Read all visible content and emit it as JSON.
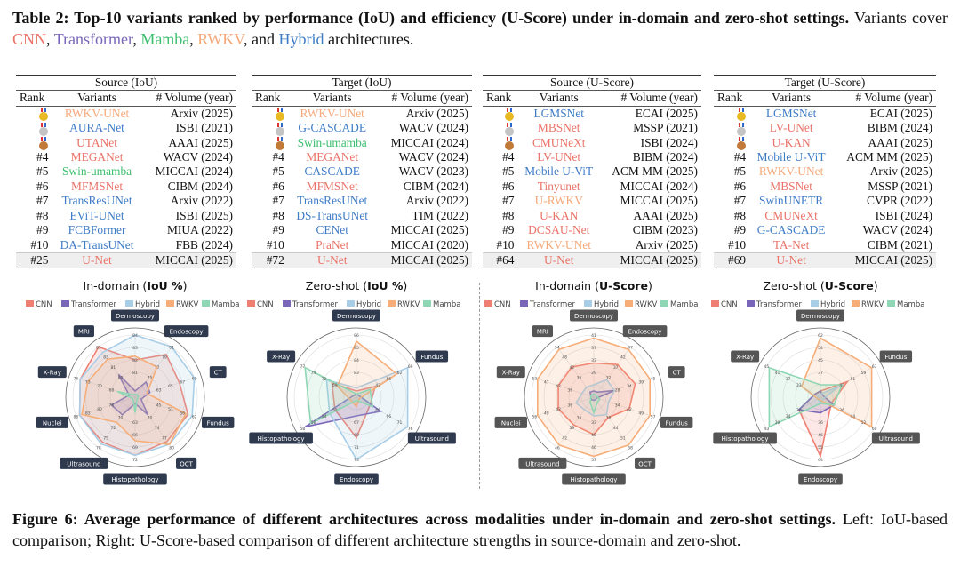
{
  "table_caption": {
    "bold": "Table 2: Top-10 variants ranked by performance (IoU) and efficiency (U-Score) under in-domain and zero-shot settings.",
    "text_1": " Variants cover ",
    "cnn": "CNN",
    "sep1": ", ",
    "transformer": "Transformer",
    "sep2": ", ",
    "mamba": "Mamba",
    "sep3": ", ",
    "rwkv": "RWKV",
    "sep4": ", and ",
    "hybrid": "Hybrid",
    "text_2": " architectures."
  },
  "arch_colors": {
    "CNN": "#ea7469",
    "Transformer": "#3f7cc6",
    "Hybrid": "#3f7cc6",
    "Mamba": "#3cbf6e",
    "RWKV": "#f6a97a"
  },
  "tables": [
    {
      "title": "Source (IoU)",
      "headers": [
        "Rank",
        "Variants",
        "# Volume (year)"
      ],
      "rows": [
        {
          "rank": "",
          "medal": "gold",
          "variant": "RWKV-UNet",
          "arch": "RWKV",
          "volume": "Arxiv (2025)"
        },
        {
          "rank": "",
          "medal": "silver",
          "variant": "AURA-Net",
          "arch": "Transformer",
          "volume": "ISBI (2021)"
        },
        {
          "rank": "",
          "medal": "bronze",
          "variant": "UTANet",
          "arch": "CNN",
          "volume": "AAAI (2025)"
        },
        {
          "rank": "#4",
          "variant": "MEGANet",
          "arch": "CNN",
          "volume": "WACV (2024)"
        },
        {
          "rank": "#5",
          "variant": "Swin-umamba",
          "arch": "Mamba",
          "volume": "MICCAI (2024)"
        },
        {
          "rank": "#6",
          "variant": "MFMSNet",
          "arch": "CNN",
          "volume": "CIBM (2024)"
        },
        {
          "rank": "#7",
          "variant": "TransResUNet",
          "arch": "Transformer",
          "volume": "Arxiv (2022)"
        },
        {
          "rank": "#8",
          "variant": "EViT-UNet",
          "arch": "Transformer",
          "volume": "ISBI (2025)"
        },
        {
          "rank": "#9",
          "variant": "FCBFormer",
          "arch": "Transformer",
          "volume": "MIUA (2022)"
        },
        {
          "rank": "#10",
          "variant": "DA-TransUNet",
          "arch": "Transformer",
          "volume": "FBB (2024)"
        },
        {
          "rank": "#25",
          "variant": "U-Net",
          "arch": "CNN",
          "volume": "MICCAI (2025)"
        }
      ]
    },
    {
      "title": "Target (IoU)",
      "headers": [
        "Rank",
        "Variants",
        "# Volume (year)"
      ],
      "rows": [
        {
          "rank": "",
          "medal": "gold",
          "variant": "RWKV-UNet",
          "arch": "RWKV",
          "volume": "Arxiv (2025)"
        },
        {
          "rank": "",
          "medal": "silver",
          "variant": "G-CASCADE",
          "arch": "Transformer",
          "volume": "WACV (2024)"
        },
        {
          "rank": "",
          "medal": "bronze",
          "variant": "Swin-umamba",
          "arch": "Mamba",
          "volume": "MICCAI (2024)"
        },
        {
          "rank": "#4",
          "variant": "MEGANet",
          "arch": "CNN",
          "volume": "WACV (2024)"
        },
        {
          "rank": "#5",
          "variant": "CASCADE",
          "arch": "Transformer",
          "volume": "WACV (2023)"
        },
        {
          "rank": "#6",
          "variant": "MFMSNet",
          "arch": "CNN",
          "volume": "CIBM (2024)"
        },
        {
          "rank": "#7",
          "variant": "TransResUNet",
          "arch": "Transformer",
          "volume": "Arxiv (2022)"
        },
        {
          "rank": "#8",
          "variant": "DS-TransUNet",
          "arch": "Transformer",
          "volume": "TIM (2022)"
        },
        {
          "rank": "#9",
          "variant": "CENet",
          "arch": "Transformer",
          "volume": "MICCAI (2025)"
        },
        {
          "rank": "#10",
          "variant": "PraNet",
          "arch": "CNN",
          "volume": "MICCAI (2020)"
        },
        {
          "rank": "#72",
          "variant": "U-Net",
          "arch": "CNN",
          "volume": "MICCAI (2025)"
        }
      ]
    },
    {
      "title": "Source (U-Score)",
      "headers": [
        "Rank",
        "Variants",
        "# Volume (year)"
      ],
      "rows": [
        {
          "rank": "",
          "medal": "gold",
          "variant": "LGMSNet",
          "arch": "Transformer",
          "volume": "ECAI (2025)"
        },
        {
          "rank": "",
          "medal": "silver",
          "variant": "MBSNet",
          "arch": "CNN",
          "volume": "MSSP (2021)"
        },
        {
          "rank": "",
          "medal": "bronze",
          "variant": "CMUNeXt",
          "arch": "CNN",
          "volume": "ISBI (2024)"
        },
        {
          "rank": "#4",
          "variant": "LV-UNet",
          "arch": "CNN",
          "volume": "BIBM (2024)"
        },
        {
          "rank": "#5",
          "variant": "Mobile U-ViT",
          "arch": "Transformer",
          "volume": "ACM MM (2025)"
        },
        {
          "rank": "#6",
          "variant": "Tinyunet",
          "arch": "CNN",
          "volume": "MICCAI (2024)"
        },
        {
          "rank": "#7",
          "variant": "U-RWKV",
          "arch": "RWKV",
          "volume": "MICCAI (2025)"
        },
        {
          "rank": "#8",
          "variant": "U-KAN",
          "arch": "CNN",
          "volume": "AAAI (2025)"
        },
        {
          "rank": "#9",
          "variant": "DCSAU-Net",
          "arch": "CNN",
          "volume": "CIBM (2023)"
        },
        {
          "rank": "#10",
          "variant": "RWKV-UNet",
          "arch": "RWKV",
          "volume": "Arxiv (2025)"
        },
        {
          "rank": "#64",
          "variant": "U-Net",
          "arch": "CNN",
          "volume": "MICCAI (2025)"
        }
      ]
    },
    {
      "title": "Target (U-Score)",
      "headers": [
        "Rank",
        "Variants",
        "# Volume (year)"
      ],
      "rows": [
        {
          "rank": "",
          "medal": "gold",
          "variant": "LGMSNet",
          "arch": "Transformer",
          "volume": "ECAI (2025)"
        },
        {
          "rank": "",
          "medal": "silver",
          "variant": "LV-UNet",
          "arch": "CNN",
          "volume": "BIBM (2024)"
        },
        {
          "rank": "",
          "medal": "bronze",
          "variant": "U-KAN",
          "arch": "CNN",
          "volume": "AAAI (2025)"
        },
        {
          "rank": "#4",
          "variant": "Mobile U-ViT",
          "arch": "Transformer",
          "volume": "ACM MM (2025)"
        },
        {
          "rank": "#5",
          "variant": "RWKV-UNet",
          "arch": "RWKV",
          "volume": "Arxiv (2025)"
        },
        {
          "rank": "#6",
          "variant": "MBSNet",
          "arch": "CNN",
          "volume": "MSSP (2021)"
        },
        {
          "rank": "#7",
          "variant": "SwinUNETR",
          "arch": "Transformer",
          "volume": "CVPR (2022)"
        },
        {
          "rank": "#8",
          "variant": "CMUNeXt",
          "arch": "CNN",
          "volume": "ISBI (2024)"
        },
        {
          "rank": "#9",
          "variant": "G-CASCADE",
          "arch": "Transformer",
          "volume": "WACV (2024)"
        },
        {
          "rank": "#10",
          "variant": "TA-Net",
          "arch": "CNN",
          "volume": "CIBM (2021)"
        },
        {
          "rank": "#69",
          "variant": "U-Net",
          "arch": "CNN",
          "volume": "MICCAI (2025)"
        }
      ]
    }
  ],
  "chart_data": [
    {
      "type": "radar",
      "title_prefix": "In-domain (",
      "title_metric": "IoU %",
      "title_suffix": ")",
      "label_color": "#2f3a4e",
      "axes": [
        "Dermoscopy",
        "Endoscopy",
        "CT",
        "Fundus",
        "OCT",
        "Histopathology",
        "Ultrasound",
        "Nuclei",
        "X-Ray",
        "MRI"
      ],
      "axis_ranges": [
        [
          79,
          84
        ],
        [
          71,
          81
        ],
        [
          59,
          69
        ],
        [
          34,
          62
        ],
        [
          64,
          80
        ],
        [
          57,
          72
        ],
        [
          64,
          78
        ],
        [
          70,
          86
        ],
        [
          62,
          76
        ],
        [
          76,
          85
        ]
      ],
      "series": [
        {
          "name": "CNN",
          "color": "#ef7f72",
          "values": [
            82,
            79.5,
            66.5,
            59,
            78,
            71,
            76.5,
            85,
            75,
            85
          ]
        },
        {
          "name": "Transformer",
          "color": "#7a66b8",
          "values": [
            79.5,
            74,
            61.5,
            36.8,
            69.6,
            58.5,
            68.9,
            76.4,
            63.4,
            80.1
          ]
        },
        {
          "name": "Hybrid",
          "color": "#a8cde6",
          "values": [
            84,
            81,
            69,
            61,
            79,
            71,
            77,
            85,
            75,
            84
          ]
        },
        {
          "name": "RWKV",
          "color": "#f6ad78",
          "values": [
            82.3,
            77,
            61,
            58,
            79,
            67.5,
            71,
            84.4,
            73.2,
            82.8
          ]
        },
        {
          "name": "Mamba",
          "color": "#8ed6b4",
          "values": [
            79.25,
            71.5,
            59.5,
            35.4,
            64.8,
            60.75,
            64.7,
            70.8,
            66.2,
            76.45
          ]
        }
      ]
    },
    {
      "type": "radar",
      "title_prefix": "Zero-shot (",
      "title_metric": "IoU %",
      "title_suffix": ")",
      "label_color": "#2f3a4e",
      "axes": [
        "Dermoscopy",
        "Fundus",
        "Ultrasound",
        "Endoscopy",
        "Histopathology",
        "X-Ray"
      ],
      "axis_ranges": [
        [
          81,
          86
        ],
        [
          33,
          69
        ],
        [
          50,
          76
        ],
        [
          63,
          73
        ],
        [
          48,
          58
        ],
        [
          64,
          77
        ]
      ],
      "series": [
        {
          "name": "CNN",
          "color": "#ef7f72",
          "values": [
            81.5,
            45.6,
            56.5,
            69.5,
            52,
            69.9
          ]
        },
        {
          "name": "Transformer",
          "color": "#7a66b8",
          "values": [
            81.25,
            34.8,
            61.7,
            66,
            57.5,
            64.7
          ]
        },
        {
          "name": "Hybrid",
          "color": "#a8cde6",
          "values": [
            81.75,
            67.2,
            74.7,
            73,
            53,
            71.2
          ]
        },
        {
          "name": "RWKV",
          "color": "#f6ad78",
          "values": [
            85.5,
            60,
            51.3,
            64.5,
            49,
            68.6
          ]
        },
        {
          "name": "Mamba",
          "color": "#8ed6b4",
          "values": [
            81.25,
            42,
            57.8,
            63.5,
            56.5,
            76.4
          ]
        }
      ]
    },
    {
      "type": "radar",
      "title_prefix": "In-domain (",
      "title_metric": "U-Score",
      "title_suffix": ")",
      "label_color": "#555555",
      "axes": [
        "Dermoscopy",
        "Endoscopy",
        "CT",
        "Fundus",
        "OCT",
        "Histopathology",
        "Ultrasound",
        "Nuclei",
        "X-Ray",
        "MRI"
      ],
      "axis_ranges": [
        [
          21,
          41
        ],
        [
          22,
          47
        ],
        [
          17,
          45
        ],
        [
          19,
          57
        ],
        [
          22,
          58
        ],
        [
          20,
          53
        ],
        [
          28,
          46
        ],
        [
          23,
          56
        ],
        [
          25,
          53
        ],
        [
          24,
          54
        ]
      ],
      "series": [
        {
          "name": "CNN",
          "color": "#ef7f72",
          "values": [
            32,
            38.25,
            36.6,
            41.8,
            36.4,
            39.8,
            37.9,
            42.8,
            41.8,
            42
          ]
        },
        {
          "name": "Transformer",
          "color": "#7a66b8",
          "values": [
            23,
            24.5,
            26.8,
            20.9,
            23.8,
            21.65,
            28.9,
            24.65,
            26.4,
            27
          ]
        },
        {
          "name": "Hybrid",
          "color": "#a8cde6",
          "values": [
            25,
            30.75,
            26.8,
            28.5,
            34.6,
            29.9,
            32.5,
            32.9,
            30.6,
            30
          ]
        },
        {
          "name": "RWKV",
          "color": "#f6ad78",
          "values": [
            40,
            45.75,
            43.6,
            55.1,
            56.2,
            51.35,
            45.1,
            54.35,
            51.6,
            52.5
          ]
        },
        {
          "name": "Mamba",
          "color": "#8ed6b4",
          "values": [
            22,
            23.25,
            18.4,
            22.8,
            25.6,
            28.25,
            29.8,
            24.65,
            26.4,
            25.5
          ]
        }
      ]
    },
    {
      "type": "radar",
      "title_prefix": "Zero-shot (",
      "title_metric": "U-Score",
      "title_suffix": ")",
      "label_color": "#555555",
      "axes": [
        "Dermoscopy",
        "Fundus",
        "Ultrasound",
        "Endoscopy",
        "Histopathology",
        "X-Ray"
      ],
      "axis_ranges": [
        [
          20,
          62
        ],
        [
          27,
          67
        ],
        [
          20,
          60
        ],
        [
          18,
          64
        ],
        [
          21,
          43
        ],
        [
          25,
          45
        ]
      ],
      "series": [
        {
          "name": "CNN",
          "color": "#ef7f72",
          "values": [
            24.2,
            47,
            28,
            61.7,
            29.8,
            27
          ]
        },
        {
          "name": "Transformer",
          "color": "#7a66b8",
          "values": [
            24.2,
            29,
            30,
            29.5,
            29.8,
            27
          ]
        },
        {
          "name": "Hybrid",
          "color": "#a8cde6",
          "values": [
            22.1,
            41,
            22,
            22.6,
            22.1,
            26
          ]
        },
        {
          "name": "RWKV",
          "color": "#f6ad78",
          "values": [
            59.9,
            65,
            58,
            20.3,
            22.1,
            32
          ]
        },
        {
          "name": "Mamba",
          "color": "#8ed6b4",
          "values": [
            28.4,
            43,
            30,
            22.6,
            41.9,
            44
          ]
        }
      ]
    }
  ],
  "figure_caption": {
    "bold": "Figure 6: Average performance of different architectures across modalities under in-domain and zero-shot settings.",
    "text": " Left: IoU-based comparison; Right: U-Score-based comparison of different architecture strengths in source-domain and zero-shot."
  }
}
